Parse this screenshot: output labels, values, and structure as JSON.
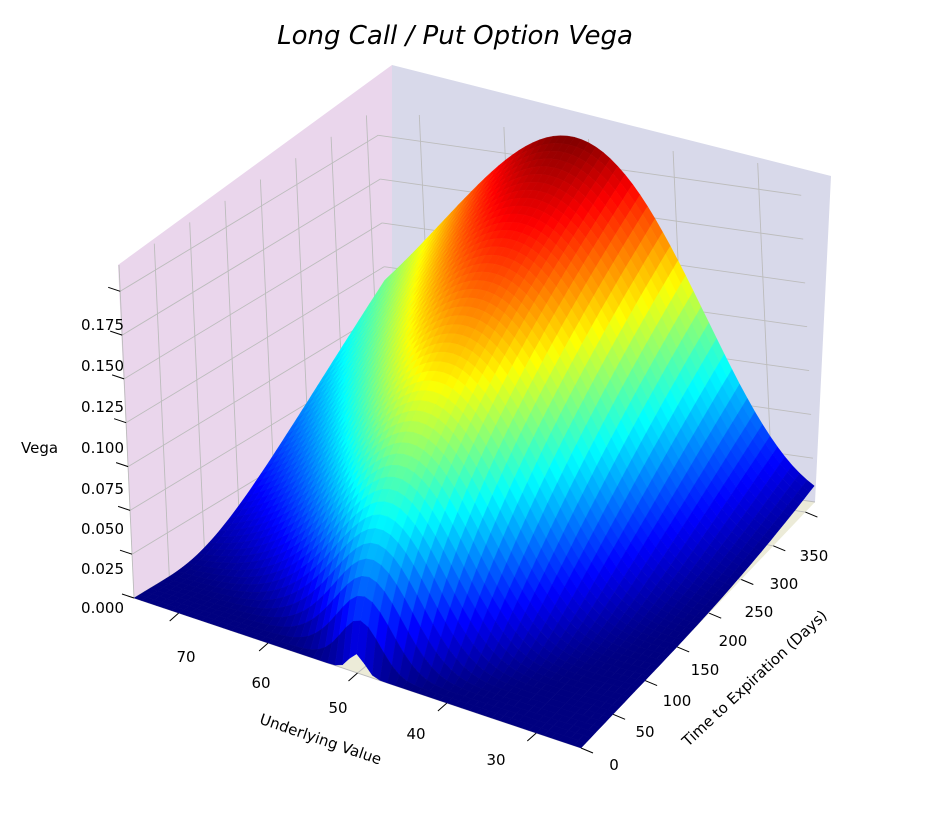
{
  "chart_data": {
    "type": "surface3d",
    "title": "Long Call / Put Option Vega",
    "xlabel": "Underlying Value",
    "ylabel": "Time to Expiration (Days)",
    "zlabel": "Vega",
    "x_ticks": [
      "70",
      "60",
      "50",
      "40",
      "30"
    ],
    "y_ticks": [
      "0",
      "50",
      "100",
      "150",
      "200",
      "250",
      "300",
      "350"
    ],
    "z_ticks": [
      "0.000",
      "0.025",
      "0.050",
      "0.075",
      "0.100",
      "0.125",
      "0.150",
      "0.175"
    ],
    "xlim": [
      25,
      75
    ],
    "ylim": [
      0,
      365
    ],
    "zlim": [
      0,
      0.19
    ],
    "strike": 50,
    "peak_vega": 0.19,
    "colormap": "jet",
    "grid": true,
    "pane_colors": {
      "left_wall": "#ead6ec",
      "back_wall": "#d8d9ea",
      "floor": "#ecebd8"
    }
  }
}
